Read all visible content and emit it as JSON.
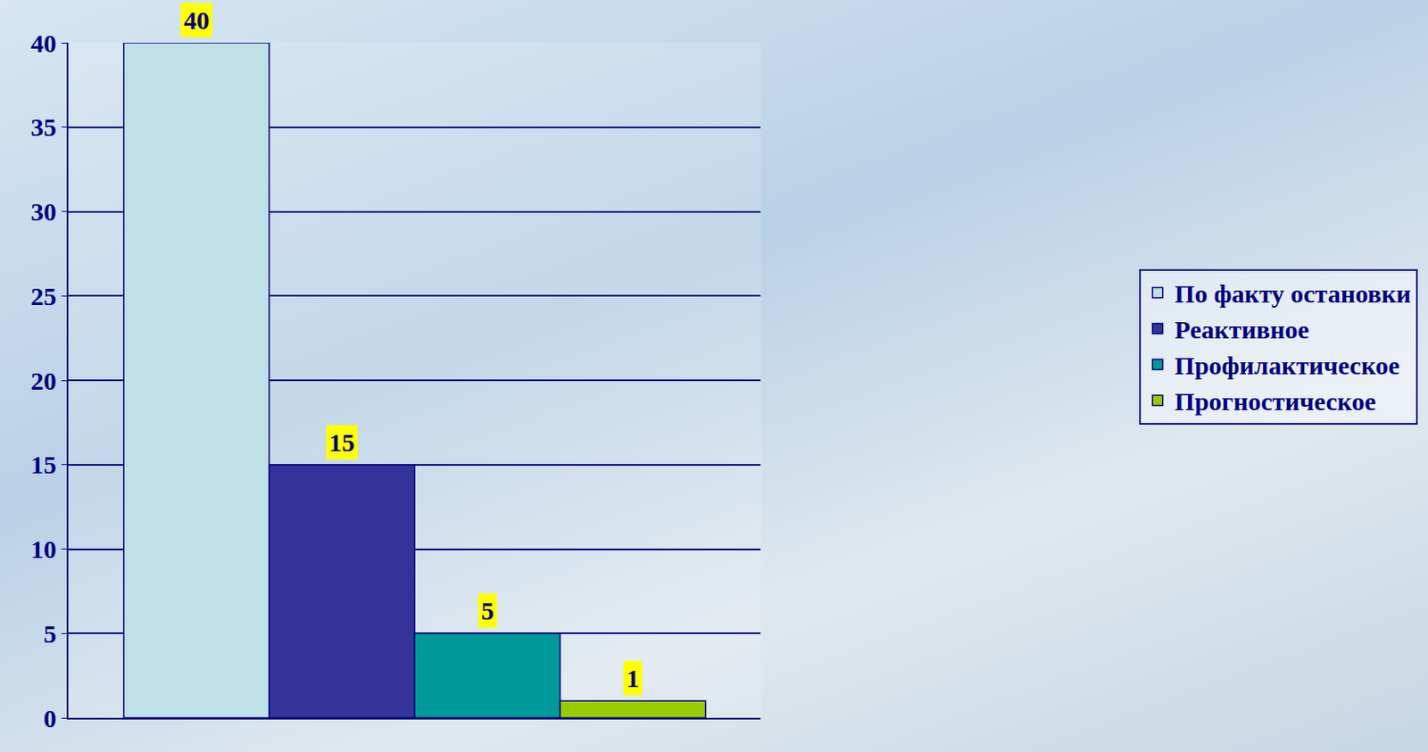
{
  "chart_data": {
    "type": "bar",
    "categories": [
      null
    ],
    "series": [
      {
        "name": "По факту остановки",
        "color": "#bfe0e6",
        "values": [
          40
        ]
      },
      {
        "name": "Реактивное",
        "color": "#333399",
        "values": [
          15
        ]
      },
      {
        "name": "Профилактическое",
        "color": "#009999",
        "values": [
          5
        ]
      },
      {
        "name": "Прогностическое",
        "color": "#99cc00",
        "values": [
          1
        ]
      }
    ],
    "ylim": [
      0,
      40
    ],
    "yticks": [
      0,
      5,
      10,
      15,
      20,
      25,
      30,
      35,
      40
    ],
    "grid": true,
    "legend": "right",
    "data_labels": true,
    "tick_labels": "y"
  }
}
